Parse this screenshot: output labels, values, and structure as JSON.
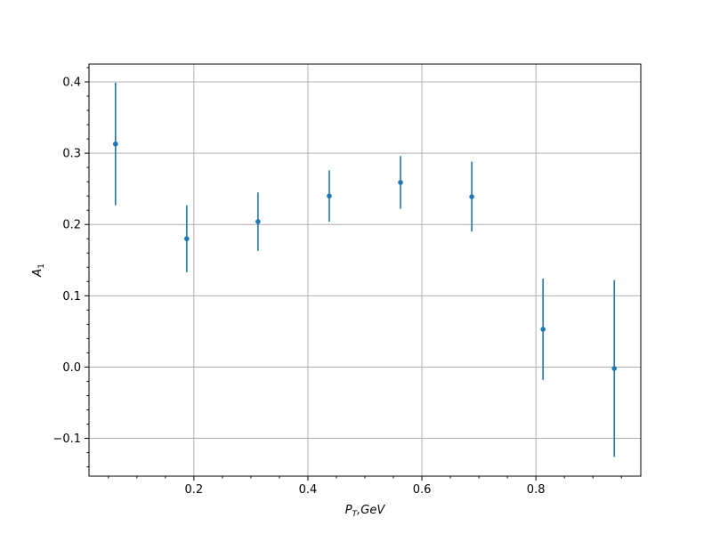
{
  "chart_data": {
    "type": "scatter",
    "style": "errorbar",
    "color": "#1f77b4",
    "grid": true,
    "xlabel": "P_T, GeV",
    "ylabel": "A_1",
    "xlim": [
      0.016,
      0.984
    ],
    "ylim": [
      -0.153,
      0.425
    ],
    "xticks": [
      0.2,
      0.4,
      0.6,
      0.8
    ],
    "xtick_labels": [
      "0.2",
      "0.4",
      "0.6",
      "0.8"
    ],
    "yticks": [
      -0.1,
      0.0,
      0.1,
      0.2,
      0.3,
      0.4
    ],
    "ytick_labels": [
      "−0.1",
      "0.0",
      "0.1",
      "0.2",
      "0.3",
      "0.4"
    ],
    "series": [
      {
        "x": [
          0.0625,
          0.1875,
          0.3125,
          0.4375,
          0.5625,
          0.6875,
          0.8125,
          0.9375
        ],
        "y": [
          0.313,
          0.18,
          0.204,
          0.24,
          0.259,
          0.239,
          0.053,
          -0.002
        ],
        "yerr": [
          0.086,
          0.047,
          0.041,
          0.036,
          0.037,
          0.049,
          0.071,
          0.124
        ]
      }
    ]
  }
}
